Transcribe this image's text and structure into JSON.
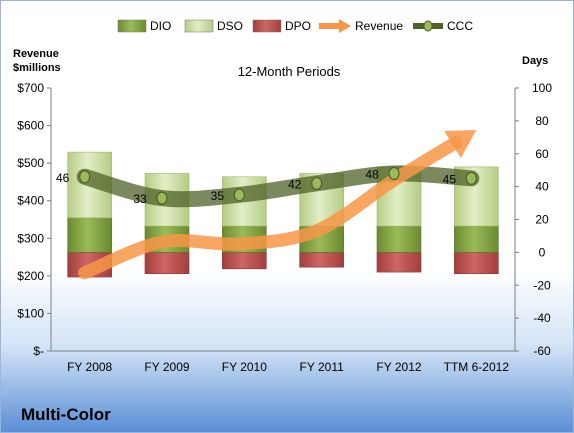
{
  "chart_data": {
    "type": "bar",
    "title": "12-Month Periods",
    "company": "Multi-Color",
    "left_axis": {
      "title_line1": "Revenue",
      "title_line2": "$millions",
      "min": 0,
      "max": 700,
      "step": 100,
      "tick_labels": [
        "$-",
        "$100",
        "$200",
        "$300",
        "$400",
        "$500",
        "$600",
        "$700"
      ]
    },
    "right_axis": {
      "title": "Days",
      "min": -60,
      "max": 100,
      "step": 20,
      "tick_labels": [
        "-60",
        "-40",
        "-20",
        "0",
        "20",
        "40",
        "60",
        "80",
        "100"
      ]
    },
    "categories": [
      "FY 2008",
      "FY 2009",
      "FY 2010",
      "FY 2011",
      "FY 2012",
      "TTM 6-2012"
    ],
    "series": [
      {
        "name": "DIO",
        "type": "stacked-bar",
        "axis": "days",
        "color": "#77933c",
        "values": [
          21,
          16,
          16,
          16,
          16,
          16
        ]
      },
      {
        "name": "DSO",
        "type": "stacked-bar",
        "axis": "days",
        "color": "#c3d69b",
        "values": [
          40,
          32,
          30,
          32,
          36,
          36
        ]
      },
      {
        "name": "DPO",
        "type": "negative-bar",
        "axis": "days",
        "color": "#c0504d",
        "values": [
          -15,
          -13,
          -10,
          -9,
          -12,
          -13
        ]
      },
      {
        "name": "Revenue",
        "type": "arrow-line",
        "axis": "revenue",
        "color": "#f79646",
        "values": [
          208,
          290,
          285,
          320,
          455,
          580
        ]
      },
      {
        "name": "CCC",
        "type": "line",
        "axis": "days",
        "color": "#4f6228",
        "values": [
          46,
          33,
          35,
          42,
          48,
          45
        ],
        "labels": [
          "46",
          "33",
          "35",
          "42",
          "48",
          "45"
        ]
      }
    ],
    "legend_position": "top",
    "grid": false
  }
}
